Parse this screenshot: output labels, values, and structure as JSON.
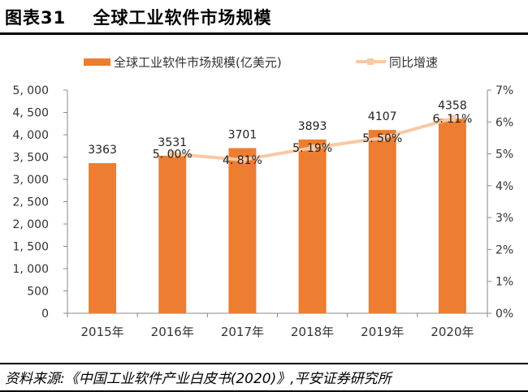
{
  "title": "图表31    全球工业软件市场规模",
  "source": "资料来源:《中国工业软件产业白皮书(2020)》,平安证券研究所",
  "chart_data": {
    "type": "bar+line",
    "categories": [
      "2015年",
      "2016年",
      "2017年",
      "2018年",
      "2019年",
      "2020年"
    ],
    "series": [
      {
        "name": "全球工业软件市场规模(亿美元)",
        "type": "bar",
        "axis": "left",
        "color": "#ed7d31",
        "values": [
          3363,
          3531,
          3701,
          3893,
          4107,
          4358
        ],
        "labels": [
          "3363",
          "3531",
          "3701",
          "3893",
          "4107",
          "4358"
        ]
      },
      {
        "name": "同比增速",
        "type": "line",
        "axis": "right",
        "color": "#f8c9a4",
        "values": [
          null,
          5.0,
          4.81,
          5.19,
          5.5,
          6.11
        ],
        "labels": [
          "",
          "5. 00%",
          "4. 81%",
          "5. 19%",
          "5. 50%",
          "6. 11%"
        ]
      }
    ],
    "y_left": {
      "range": [
        0,
        5000
      ],
      "ticks": [
        "0",
        "500",
        "1, 000",
        "1, 500",
        "2, 000",
        "2, 500",
        "3, 000",
        "3, 500",
        "4, 000",
        "4, 500",
        "5, 000"
      ]
    },
    "y_right": {
      "range": [
        0,
        7
      ],
      "ticks": [
        "0%",
        "1%",
        "2%",
        "3%",
        "4%",
        "5%",
        "6%",
        "7%"
      ]
    },
    "legend": "top",
    "grid": false
  }
}
